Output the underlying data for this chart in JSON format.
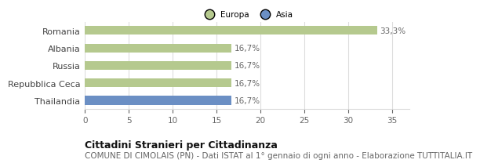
{
  "categories": [
    "Romania",
    "Albania",
    "Russia",
    "Repubblica Ceca",
    "Thailandia"
  ],
  "values": [
    33.3,
    16.7,
    16.7,
    16.7,
    16.7
  ],
  "bar_colors": [
    "#b5c98e",
    "#b5c98e",
    "#b5c98e",
    "#b5c98e",
    "#6b8fc4"
  ],
  "value_labels": [
    "33,3%",
    "16,7%",
    "16,7%",
    "16,7%",
    "16,7%"
  ],
  "xlim": [
    0,
    37
  ],
  "xticks": [
    0,
    5,
    10,
    15,
    20,
    25,
    30,
    35
  ],
  "legend_labels": [
    "Europa",
    "Asia"
  ],
  "legend_colors": [
    "#b5c98e",
    "#6b8fc4"
  ],
  "title": "Cittadini Stranieri per Cittadinanza",
  "subtitle": "COMUNE DI CIMOLAIS (PN) - Dati ISTAT al 1° gennaio di ogni anno - Elaborazione TUTTITALIA.IT",
  "title_fontsize": 9,
  "subtitle_fontsize": 7.5,
  "label_fontsize": 8,
  "tick_fontsize": 7.5,
  "value_fontsize": 7.5,
  "bg_color": "#ffffff",
  "grid_color": "#dddddd",
  "bar_height": 0.5
}
